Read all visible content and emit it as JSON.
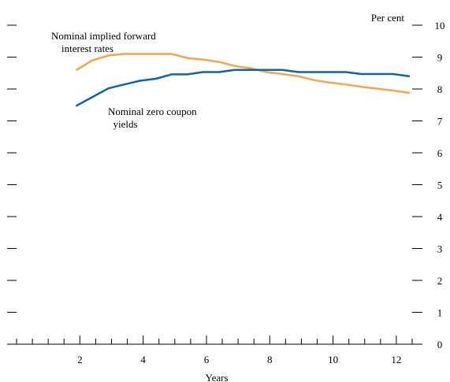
{
  "chart_data": {
    "type": "line",
    "xlabel": "Years",
    "ylabel": "Per cent",
    "xlim": [
      0,
      12.5
    ],
    "ylim": [
      0,
      10
    ],
    "x_ticks": [
      2,
      4,
      6,
      8,
      10,
      12
    ],
    "y_ticks": [
      0,
      1,
      2,
      3,
      4,
      5,
      6,
      7,
      8,
      9,
      10
    ],
    "grid": false,
    "series": [
      {
        "name": "Nominal implied forward interest rates",
        "color": "#F5A54A",
        "x": [
          1.9,
          2.4,
          2.9,
          3.4,
          3.9,
          4.4,
          4.9,
          5.4,
          5.9,
          6.4,
          6.9,
          7.4,
          7.9,
          8.4,
          8.9,
          9.4,
          9.9,
          10.4,
          10.9,
          11.4,
          11.9,
          12.4
        ],
        "values": [
          8.6,
          8.9,
          9.05,
          9.1,
          9.1,
          9.1,
          9.1,
          8.97,
          8.92,
          8.85,
          8.72,
          8.65,
          8.53,
          8.47,
          8.4,
          8.28,
          8.2,
          8.14,
          8.07,
          8.01,
          7.95,
          7.88
        ]
      },
      {
        "name": "Nominal zero coupon yields",
        "color": "#0E65A3",
        "x": [
          1.9,
          2.4,
          2.9,
          3.4,
          3.9,
          4.4,
          4.9,
          5.4,
          5.9,
          6.4,
          6.9,
          7.4,
          7.9,
          8.4,
          8.9,
          9.4,
          9.9,
          10.4,
          10.9,
          11.4,
          11.9,
          12.4
        ],
        "values": [
          7.48,
          7.75,
          8.02,
          8.14,
          8.26,
          8.32,
          8.46,
          8.46,
          8.53,
          8.53,
          8.6,
          8.6,
          8.6,
          8.6,
          8.53,
          8.53,
          8.53,
          8.53,
          8.47,
          8.47,
          8.47,
          8.4
        ]
      }
    ],
    "annotations": [
      {
        "series": 0,
        "lines": [
          "Nominal implied forward",
          "interest rates"
        ]
      },
      {
        "series": 1,
        "lines": [
          "Nominal zero coupon",
          "yields"
        ]
      }
    ]
  }
}
